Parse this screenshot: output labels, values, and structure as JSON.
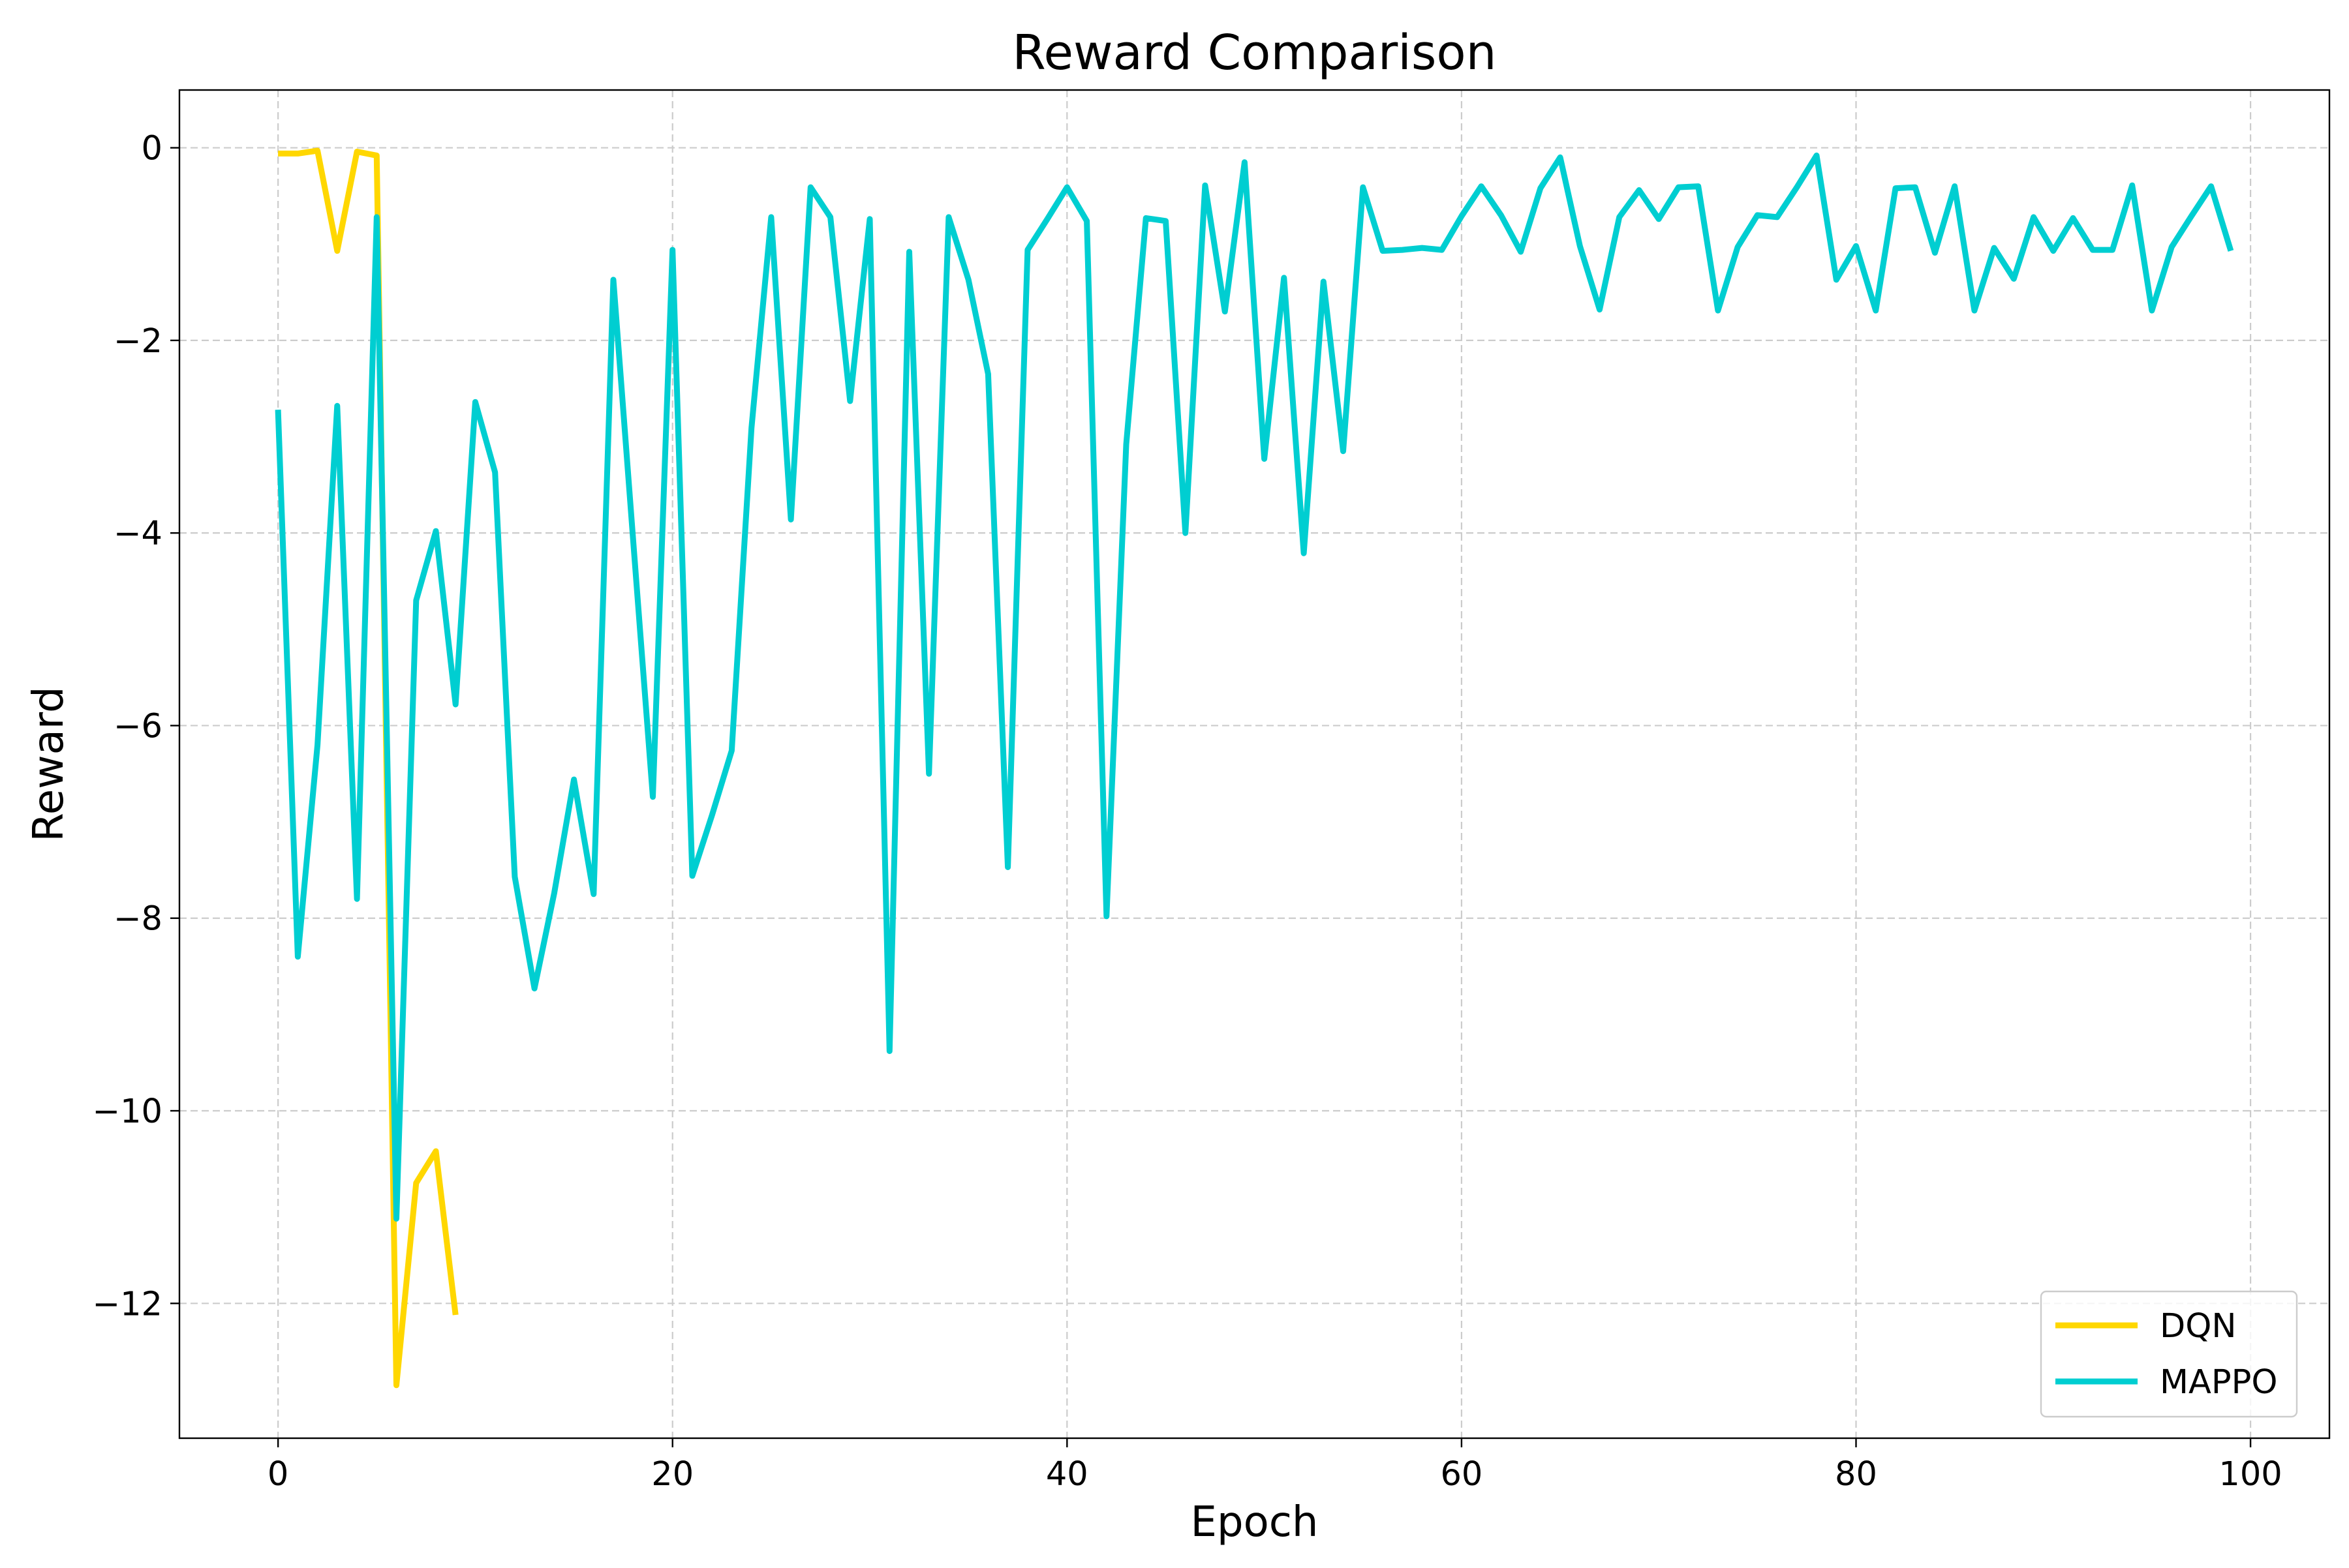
{
  "chart_data": {
    "type": "line",
    "title": "Reward Comparison",
    "xlabel": "Epoch",
    "ylabel": "Reward",
    "xlim": [
      -5,
      104
    ],
    "ylim": [
      -13.4,
      0.6
    ],
    "xticks": [
      0,
      20,
      40,
      60,
      80,
      100
    ],
    "xtick_labels": [
      "0",
      "20",
      "40",
      "60",
      "80",
      "100"
    ],
    "yticks": [
      0,
      -2,
      -4,
      -6,
      -8,
      -10,
      -12
    ],
    "ytick_labels": [
      "0",
      "−2",
      "−4",
      "−6",
      "−8",
      "−10",
      "−12"
    ],
    "grid": true,
    "legend_position": "lower-right",
    "series": [
      {
        "name": "DQN",
        "color": "#FFD700",
        "x": [
          0,
          1,
          2,
          3,
          4,
          5,
          6,
          7,
          8,
          9
        ],
        "y": [
          -0.06,
          -0.06,
          -0.03,
          -1.07,
          -0.04,
          -0.08,
          -12.85,
          -10.75,
          -10.42,
          -12.12
        ]
      },
      {
        "name": "MAPPO",
        "color": "#00CED1",
        "x": [
          0,
          1,
          2,
          3,
          4,
          5,
          6,
          7,
          8,
          9,
          10,
          11,
          12,
          13,
          14,
          15,
          16,
          17,
          18,
          19,
          20,
          21,
          22,
          23,
          24,
          25,
          26,
          27,
          28,
          29,
          30,
          31,
          32,
          33,
          34,
          35,
          36,
          37,
          38,
          39,
          40,
          41,
          42,
          43,
          44,
          45,
          46,
          47,
          48,
          49,
          50,
          51,
          52,
          53,
          54,
          55,
          56,
          57,
          58,
          59,
          60,
          61,
          62,
          63,
          64,
          65,
          66,
          67,
          68,
          69,
          70,
          71,
          72,
          73,
          74,
          75,
          76,
          77,
          78,
          79,
          80,
          81,
          82,
          83,
          84,
          85,
          86,
          87,
          88,
          89,
          90,
          91,
          92,
          93,
          94,
          95,
          96,
          97,
          98,
          99
        ],
        "y": [
          -2.72,
          -8.4,
          -6.2,
          -2.68,
          -7.8,
          -0.72,
          -11.12,
          -4.7,
          -3.98,
          -5.78,
          -2.64,
          -3.37,
          -7.57,
          -8.73,
          -7.74,
          -6.56,
          -7.75,
          -1.37,
          -4.07,
          -6.74,
          -1.06,
          -7.56,
          -6.93,
          -6.26,
          -2.91,
          -0.72,
          -3.86,
          -0.41,
          -0.72,
          -2.63,
          -0.74,
          -9.38,
          -1.08,
          -6.5,
          -0.72,
          -1.37,
          -2.35,
          -7.47,
          -1.06,
          -0.74,
          -0.41,
          -0.76,
          -7.98,
          -3.08,
          -0.73,
          -0.76,
          -4.0,
          -0.39,
          -1.7,
          -0.15,
          -3.23,
          -1.35,
          -4.21,
          -1.39,
          -3.15,
          -0.41,
          -1.07,
          -1.06,
          -1.04,
          -1.06,
          -0.71,
          -0.4,
          -0.7,
          -1.08,
          -0.42,
          -0.1,
          -1.02,
          -1.68,
          -0.72,
          -0.44,
          -0.74,
          -0.41,
          -0.4,
          -1.69,
          -1.03,
          -0.7,
          -0.72,
          -0.41,
          -0.08,
          -1.37,
          -1.02,
          -1.69,
          -0.42,
          -0.41,
          -1.09,
          -0.4,
          -1.69,
          -1.04,
          -1.36,
          -0.72,
          -1.07,
          -0.73,
          -1.06,
          -1.06,
          -0.39,
          -1.69,
          -1.03,
          -0.71,
          -0.4,
          -1.07
        ]
      }
    ]
  }
}
